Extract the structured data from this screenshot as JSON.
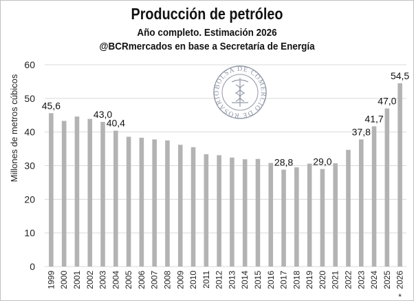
{
  "chart_data": {
    "type": "bar",
    "title": "Producción de petróleo",
    "subtitle_lines": [
      "Año completo. Estimación 2026",
      "@BCRmercados en base a Secretaría de Energía"
    ],
    "ylabel": "Millones de metros cúbicos",
    "xlabel": "",
    "ylim": [
      0,
      60
    ],
    "yticks": [
      "0",
      "10",
      "20",
      "30",
      "40",
      "50",
      "60"
    ],
    "grid": true,
    "bar_color": "#b3b3b3",
    "categories": [
      "1999",
      "2000",
      "2001",
      "2002",
      "2003",
      "2004",
      "2005",
      "2006",
      "2007",
      "2008",
      "2009",
      "2010",
      "2011",
      "2012",
      "2013",
      "2014",
      "2015",
      "2016",
      "2017",
      "2018",
      "2019",
      "2020",
      "2021",
      "2022",
      "2023",
      "2024",
      "2025",
      "2026"
    ],
    "category_notes": {
      "2026": "*"
    },
    "values": [
      45.6,
      43.3,
      44.6,
      43.9,
      43.0,
      40.4,
      38.6,
      38.3,
      37.8,
      37.5,
      36.2,
      35.5,
      33.4,
      33.1,
      32.4,
      31.9,
      32.0,
      30.8,
      28.8,
      29.5,
      30.6,
      29.0,
      30.7,
      34.7,
      37.8,
      41.7,
      47.0,
      54.5
    ],
    "data_labels": {
      "1999": "45,6",
      "2003": "43,0",
      "2004": "40,4",
      "2017": "28,8",
      "2020": "29,0",
      "2023": "37,8",
      "2024": "41,7",
      "2025": "47,0",
      "2026": "54,5"
    }
  },
  "watermark": {
    "text": "BOLSA DE COMERCIO DE ROSARIO",
    "color": "#6a7388"
  }
}
